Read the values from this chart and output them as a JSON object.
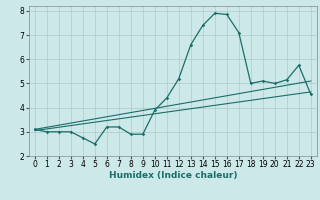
{
  "title": "",
  "xlabel": "Humidex (Indice chaleur)",
  "bg_color": "#cce8e8",
  "grid_color": "#b0c8c8",
  "line_color": "#1a6e6a",
  "xlim": [
    -0.5,
    23.5
  ],
  "ylim": [
    2,
    8.2
  ],
  "xticks": [
    0,
    1,
    2,
    3,
    4,
    5,
    6,
    7,
    8,
    9,
    10,
    11,
    12,
    13,
    14,
    15,
    16,
    17,
    18,
    19,
    20,
    21,
    22,
    23
  ],
  "yticks": [
    2,
    3,
    4,
    5,
    6,
    7,
    8
  ],
  "main_x": [
    0,
    1,
    2,
    3,
    4,
    5,
    6,
    7,
    8,
    9,
    10,
    11,
    12,
    13,
    14,
    15,
    16,
    17,
    18,
    19,
    20,
    21,
    22,
    23
  ],
  "main_y": [
    3.1,
    3.0,
    3.0,
    3.0,
    2.75,
    2.5,
    3.2,
    3.2,
    2.9,
    2.9,
    3.9,
    4.4,
    5.2,
    6.6,
    7.4,
    7.9,
    7.85,
    7.1,
    5.0,
    5.1,
    5.0,
    5.15,
    5.75,
    4.55
  ],
  "line1_x": [
    0,
    23
  ],
  "line1_y": [
    3.05,
    4.65
  ],
  "line2_x": [
    0,
    23
  ],
  "line2_y": [
    3.1,
    5.1
  ],
  "tick_fontsize": 5.5,
  "xlabel_fontsize": 6.5
}
